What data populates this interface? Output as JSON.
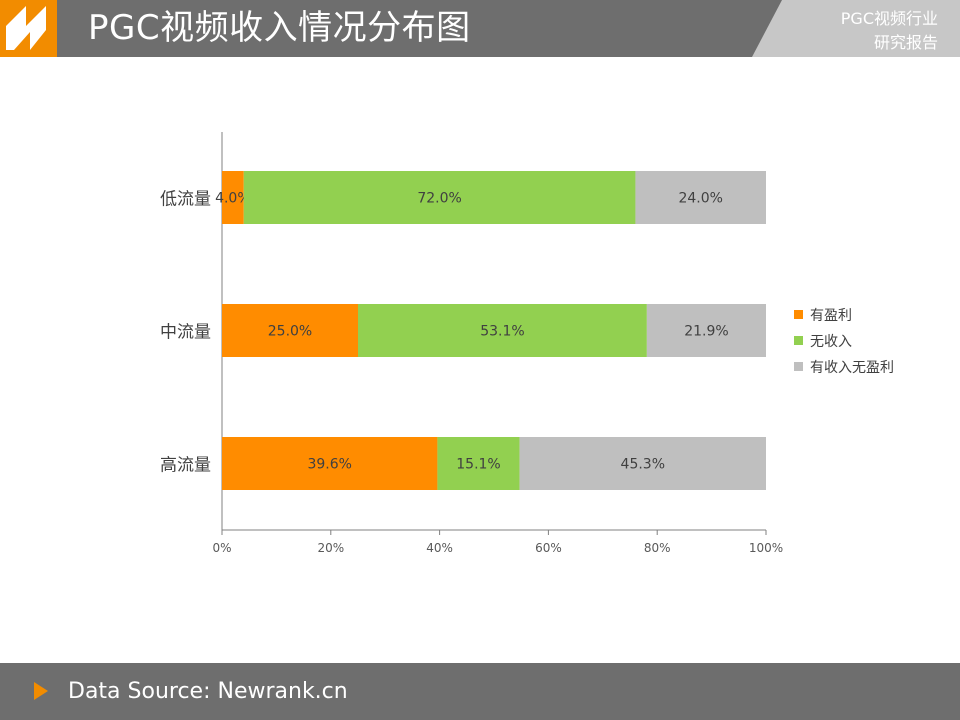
{
  "header": {
    "title": "PGC视频收入情况分布图",
    "report_line1": "PGC视频行业",
    "report_line2": "研究报告"
  },
  "footer": {
    "source": "Data Source: Newrank.cn",
    "icon": "play-triangle-icon"
  },
  "colors": {
    "header_bg": "#6e6e6e",
    "accent": "#f28c00",
    "series_profit": "#ff8c00",
    "series_none": "#92d050",
    "series_income_no_profit": "#bfbfbf"
  },
  "chart_data": {
    "type": "bar",
    "orientation": "horizontal",
    "stacked": true,
    "categories": [
      "低流量",
      "中流量",
      "高流量"
    ],
    "series": [
      {
        "name": "有盈利",
        "values": [
          4.0,
          25.0,
          39.6
        ],
        "labels": [
          "4.0%",
          "25.0%",
          "39.6%"
        ],
        "color": "#ff8c00"
      },
      {
        "name": "无收入",
        "values": [
          72.0,
          53.1,
          15.1
        ],
        "labels": [
          "72.0%",
          "53.1%",
          "15.1%"
        ],
        "color": "#92d050"
      },
      {
        "name": "有收入无盈利",
        "values": [
          24.0,
          21.9,
          45.3
        ],
        "labels": [
          "24.0%",
          "21.9%",
          "45.3%"
        ],
        "color": "#bfbfbf"
      }
    ],
    "xlim": [
      0,
      100
    ],
    "xticks": [
      "0%",
      "20%",
      "40%",
      "60%",
      "80%",
      "100%"
    ],
    "legend_position": "right",
    "grid": false
  }
}
